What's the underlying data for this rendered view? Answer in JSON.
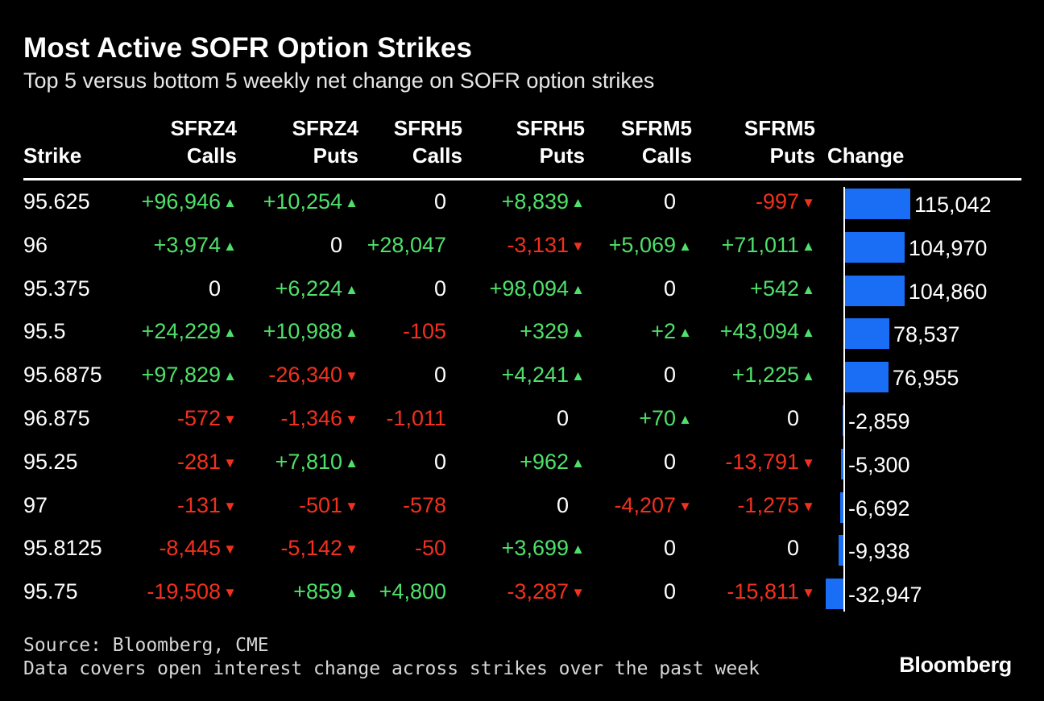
{
  "title": "Most Active SOFR Option Strikes",
  "subtitle": "Top 5 versus bottom 5 weekly net change on SOFR option strikes",
  "source": "Source: Bloomberg, CME",
  "note": "Data covers open interest change across strikes over the past week",
  "logo": "Bloomberg",
  "colors": {
    "positive": "#4ee06a",
    "negative": "#f2301e",
    "bar": "#1a6ef5",
    "background": "#000000"
  },
  "chart_data": {
    "type": "table",
    "columns": [
      {
        "line1": "",
        "line2": "Strike"
      },
      {
        "line1": "SFRZ4",
        "line2": "Calls"
      },
      {
        "line1": "SFRZ4",
        "line2": "Puts"
      },
      {
        "line1": "SFRH5",
        "line2": "Calls"
      },
      {
        "line1": "SFRH5",
        "line2": "Puts"
      },
      {
        "line1": "SFRM5",
        "line2": "Calls"
      },
      {
        "line1": "SFRM5",
        "line2": "Puts"
      },
      {
        "line1": "",
        "line2": "Change"
      }
    ],
    "rows": [
      {
        "strike": "95.625",
        "values": [
          "+96,946",
          "+10,254",
          "0",
          "+8,839",
          "0",
          "-997"
        ],
        "change": 115042,
        "change_label": "115,042"
      },
      {
        "strike": "96",
        "values": [
          "+3,974",
          "0",
          "+28,047",
          "-3,131",
          "+5,069",
          "+71,011"
        ],
        "change": 104970,
        "change_label": "104,970"
      },
      {
        "strike": "95.375",
        "values": [
          "0",
          "+6,224",
          "0",
          "+98,094",
          "0",
          "+542"
        ],
        "change": 104860,
        "change_label": "104,860"
      },
      {
        "strike": "95.5",
        "values": [
          "+24,229",
          "+10,988",
          "-105",
          "+329",
          "+2",
          "+43,094"
        ],
        "change": 78537,
        "change_label": "78,537"
      },
      {
        "strike": "95.6875",
        "values": [
          "+97,829",
          "-26,340",
          "0",
          "+4,241",
          "0",
          "+1,225"
        ],
        "change": 76955,
        "change_label": "76,955"
      },
      {
        "strike": "96.875",
        "values": [
          "-572",
          "-1,346",
          "-1,011",
          "0",
          "+70",
          "0"
        ],
        "change": -2859,
        "change_label": "-2,859"
      },
      {
        "strike": "95.25",
        "values": [
          "-281",
          "+7,810",
          "0",
          "+962",
          "0",
          "-13,791"
        ],
        "change": -5300,
        "change_label": "-5,300"
      },
      {
        "strike": "97",
        "values": [
          "-131",
          "-501",
          "-578",
          "0",
          "-4,207",
          "-1,275"
        ],
        "change": -6692,
        "change_label": "-6,692"
      },
      {
        "strike": "95.8125",
        "values": [
          "-8,445",
          "-5,142",
          "-50",
          "+3,699",
          "0",
          "0"
        ],
        "change": -9938,
        "change_label": "-9,938"
      },
      {
        "strike": "95.75",
        "values": [
          "-19,508",
          "+859",
          "+4,800",
          "-3,287",
          "0",
          "-15,811"
        ],
        "change": -32947,
        "change_label": "-32,947"
      }
    ],
    "arrow_columns": [
      true,
      true,
      false,
      true,
      true,
      true
    ],
    "change_max": 115042
  }
}
